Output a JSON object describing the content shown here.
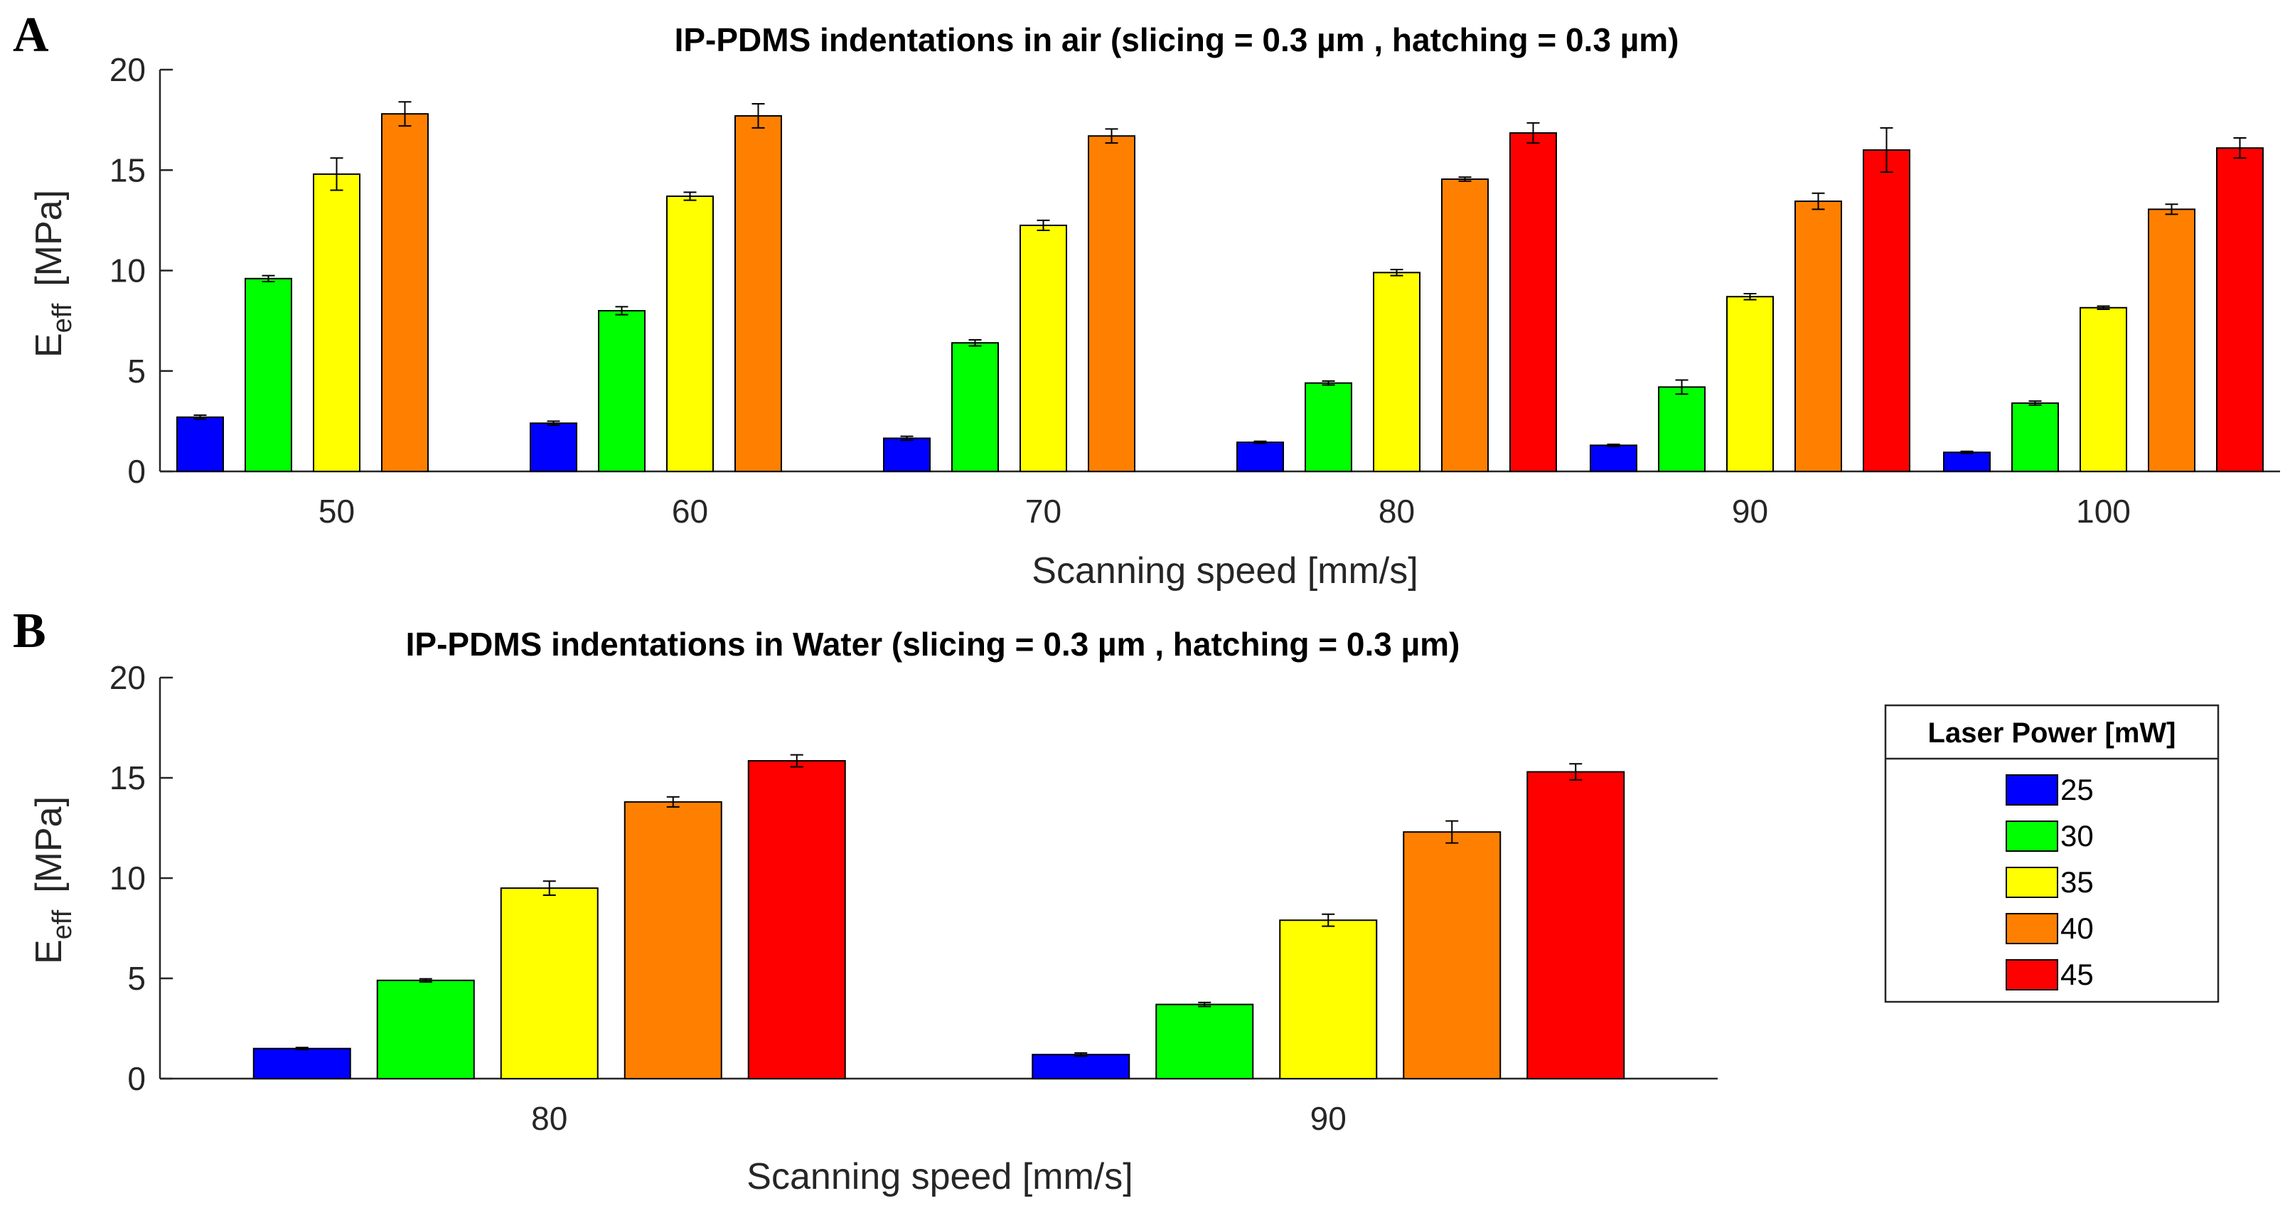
{
  "panels": {
    "a": {
      "letter": "A"
    },
    "b": {
      "letter": "B"
    }
  },
  "legend": {
    "title": "Laser Power [mW]",
    "entries": [
      "25",
      "30",
      "35",
      "40",
      "45"
    ]
  },
  "colors": {
    "25": "#0000FF",
    "30": "#00FF00",
    "35": "#FFFF00",
    "40": "#FF8000",
    "45": "#FF0000"
  },
  "chart_data": [
    {
      "type": "bar",
      "id": "A",
      "title": "IP-PDMS indentations in air (slicing = 0.3 µm , hatching = 0.3 µm)",
      "xlabel": "Scanning speed [mm/s]",
      "ylabel_main": "E",
      "ylabel_sub": "eff",
      "ylabel_unit": "[MPa]",
      "ylim": [
        0,
        20
      ],
      "yticks": [
        0,
        5,
        10,
        15,
        20
      ],
      "categories": [
        "50",
        "60",
        "70",
        "80",
        "90",
        "100"
      ],
      "series": [
        {
          "name": "25",
          "values": [
            2.7,
            2.4,
            1.65,
            1.45,
            1.3,
            0.95
          ],
          "errors": [
            0.1,
            0.1,
            0.1,
            0.05,
            0.05,
            0.05
          ]
        },
        {
          "name": "30",
          "values": [
            9.6,
            8.0,
            6.4,
            4.4,
            4.2,
            3.4
          ],
          "errors": [
            0.15,
            0.2,
            0.15,
            0.1,
            0.35,
            0.1
          ]
        },
        {
          "name": "35",
          "values": [
            14.8,
            13.7,
            12.25,
            9.9,
            8.7,
            8.15
          ],
          "errors": [
            0.8,
            0.2,
            0.25,
            0.15,
            0.15,
            0.08
          ]
        },
        {
          "name": "40",
          "values": [
            17.8,
            17.7,
            16.7,
            14.55,
            13.45,
            13.05
          ],
          "errors": [
            0.6,
            0.6,
            0.35,
            0.1,
            0.4,
            0.25
          ]
        },
        {
          "name": "45",
          "values": [
            null,
            null,
            null,
            16.85,
            16.0,
            16.1
          ],
          "errors": [
            null,
            null,
            null,
            0.5,
            1.1,
            0.5
          ]
        }
      ]
    },
    {
      "type": "bar",
      "id": "B",
      "title": "IP-PDMS indentations in Water (slicing = 0.3 µm , hatching = 0.3 µm)",
      "xlabel": "Scanning speed [mm/s]",
      "ylabel_main": "E",
      "ylabel_sub": "eff",
      "ylabel_unit": "[MPa]",
      "ylim": [
        0,
        20
      ],
      "yticks": [
        0,
        5,
        10,
        15,
        20
      ],
      "categories": [
        "80",
        "90"
      ],
      "series": [
        {
          "name": "25",
          "values": [
            1.5,
            1.2
          ],
          "errors": [
            0.05,
            0.08
          ]
        },
        {
          "name": "30",
          "values": [
            4.9,
            3.7
          ],
          "errors": [
            0.08,
            0.1
          ]
        },
        {
          "name": "35",
          "values": [
            9.5,
            7.9
          ],
          "errors": [
            0.35,
            0.3
          ]
        },
        {
          "name": "40",
          "values": [
            13.8,
            12.3
          ],
          "errors": [
            0.25,
            0.55
          ]
        },
        {
          "name": "45",
          "values": [
            15.85,
            15.3
          ],
          "errors": [
            0.3,
            0.4
          ]
        }
      ]
    }
  ]
}
